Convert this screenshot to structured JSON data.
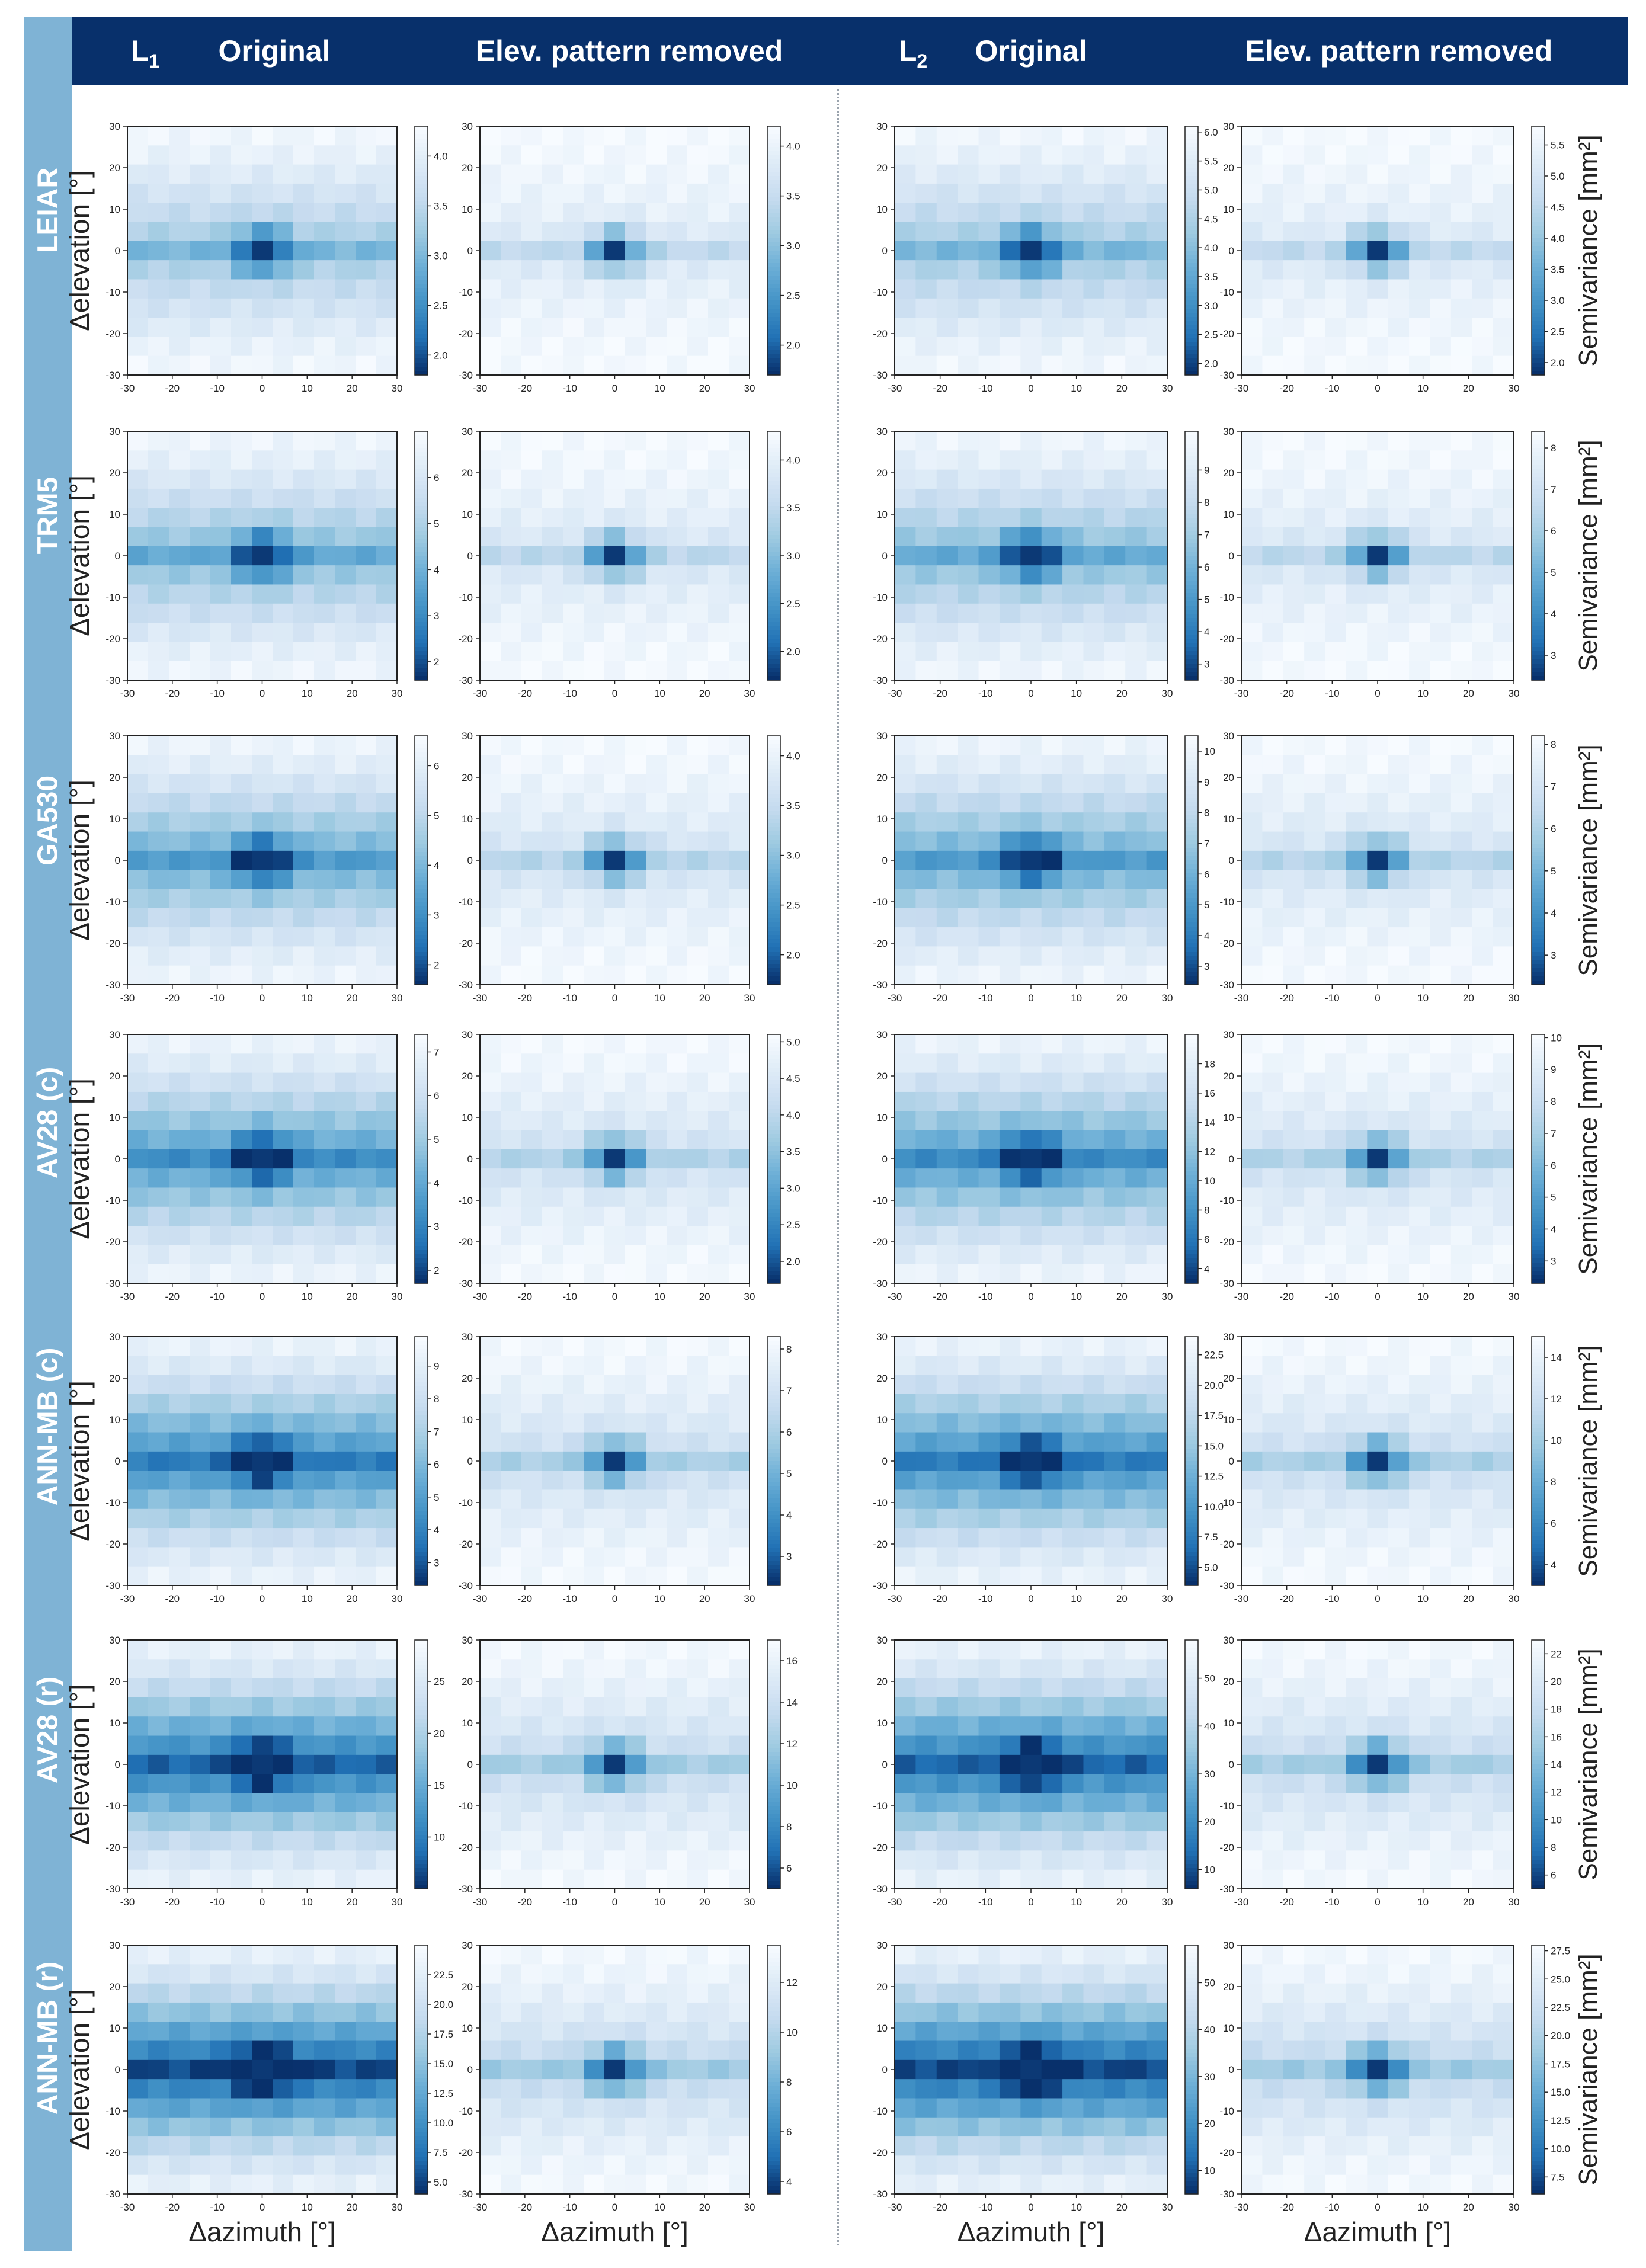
{
  "header": {
    "l1_label": "L",
    "l1_sub": "1",
    "l2_label": "L",
    "l2_sub": "2",
    "original": "Original",
    "removed": "Elev. pattern removed"
  },
  "rows": [
    {
      "label": "LEIAR"
    },
    {
      "label": "TRM5"
    },
    {
      "label": "GA530"
    },
    {
      "label": "AV28 (c)"
    },
    {
      "label": "ANN-MB (c)"
    },
    {
      "label": "AV28 (r)"
    },
    {
      "label": "ANN-MB (r)"
    }
  ],
  "axes": {
    "ylabel": "Δelevation [°]",
    "xlabel": "Δazimuth [°]",
    "cbar_label": "Semivariance [mm²]",
    "ticks": [
      "-30",
      "-20",
      "-10",
      "0",
      "10",
      "20",
      "30"
    ]
  },
  "colors": {
    "sidebar": "#7fb3d5",
    "header": "#08306b",
    "divider": "#9aa3ad"
  },
  "chart_data": [
    {
      "type": "heatmap",
      "row": "LEIAR",
      "col": "L1 Original",
      "colormap": "Blues_r",
      "x_range": [
        -30,
        30
      ],
      "y_range": [
        -30,
        30
      ],
      "cbar_range": [
        1.8,
        4.3
      ],
      "cbar_ticks": [
        "4.0",
        "3.5",
        "3.0",
        "2.5",
        "2.0"
      ]
    },
    {
      "type": "heatmap",
      "row": "LEIAR",
      "col": "L1 Elev. pattern removed",
      "colormap": "Blues_r",
      "x_range": [
        -30,
        30
      ],
      "y_range": [
        -30,
        30
      ],
      "cbar_range": [
        1.7,
        4.2
      ],
      "cbar_ticks": [
        "4.0",
        "3.5",
        "3.0",
        "2.5",
        "2.0"
      ]
    },
    {
      "type": "heatmap",
      "row": "LEIAR",
      "col": "L2 Original",
      "colormap": "Blues_r",
      "x_range": [
        -30,
        30
      ],
      "y_range": [
        -30,
        30
      ],
      "cbar_range": [
        1.8,
        6.1
      ],
      "cbar_ticks": [
        "6.0",
        "5.5",
        "5.0",
        "4.5",
        "4.0",
        "3.5",
        "3.0",
        "2.5",
        "2.0"
      ]
    },
    {
      "type": "heatmap",
      "row": "LEIAR",
      "col": "L2 Elev. pattern removed",
      "colormap": "Blues_r",
      "x_range": [
        -30,
        30
      ],
      "y_range": [
        -30,
        30
      ],
      "cbar_range": [
        1.8,
        5.8
      ],
      "cbar_ticks": [
        "5.5",
        "5.0",
        "4.5",
        "4.0",
        "3.5",
        "3.0",
        "2.5",
        "2.0"
      ]
    },
    {
      "type": "heatmap",
      "row": "TRM5",
      "col": "L1 Original",
      "colormap": "Blues_r",
      "x_range": [
        -30,
        30
      ],
      "y_range": [
        -30,
        30
      ],
      "cbar_range": [
        1.6,
        7.0
      ],
      "cbar_ticks": [
        "6",
        "5",
        "4",
        "3",
        "2"
      ]
    },
    {
      "type": "heatmap",
      "row": "TRM5",
      "col": "L1 Elev. pattern removed",
      "colormap": "Blues_r",
      "x_range": [
        -30,
        30
      ],
      "y_range": [
        -30,
        30
      ],
      "cbar_range": [
        1.7,
        4.3
      ],
      "cbar_ticks": [
        "4.0",
        "3.5",
        "3.0",
        "2.5",
        "2.0"
      ]
    },
    {
      "type": "heatmap",
      "row": "TRM5",
      "col": "L2 Original",
      "colormap": "Blues_r",
      "x_range": [
        -30,
        30
      ],
      "y_range": [
        -30,
        30
      ],
      "cbar_range": [
        2.5,
        10.2
      ],
      "cbar_ticks": [
        "9",
        "8",
        "7",
        "6",
        "5",
        "4",
        "3"
      ]
    },
    {
      "type": "heatmap",
      "row": "TRM5",
      "col": "L2 Elev. pattern removed",
      "colormap": "Blues_r",
      "x_range": [
        -30,
        30
      ],
      "y_range": [
        -30,
        30
      ],
      "cbar_range": [
        2.4,
        8.4
      ],
      "cbar_ticks": [
        "8",
        "7",
        "6",
        "5",
        "4",
        "3"
      ]
    },
    {
      "type": "heatmap",
      "row": "GA530",
      "col": "L1 Original",
      "colormap": "Blues_r",
      "x_range": [
        -30,
        30
      ],
      "y_range": [
        -30,
        30
      ],
      "cbar_range": [
        1.6,
        6.6
      ],
      "cbar_ticks": [
        "6",
        "5",
        "4",
        "3",
        "2"
      ]
    },
    {
      "type": "heatmap",
      "row": "GA530",
      "col": "L1 Elev. pattern removed",
      "colormap": "Blues_r",
      "x_range": [
        -30,
        30
      ],
      "y_range": [
        -30,
        30
      ],
      "cbar_range": [
        1.7,
        4.2
      ],
      "cbar_ticks": [
        "4.0",
        "3.5",
        "3.0",
        "2.5",
        "2.0"
      ]
    },
    {
      "type": "heatmap",
      "row": "GA530",
      "col": "L2 Original",
      "colormap": "Blues_r",
      "x_range": [
        -30,
        30
      ],
      "y_range": [
        -30,
        30
      ],
      "cbar_range": [
        2.4,
        10.5
      ],
      "cbar_ticks": [
        "10",
        "9",
        "8",
        "7",
        "6",
        "5",
        "4",
        "3"
      ]
    },
    {
      "type": "heatmap",
      "row": "GA530",
      "col": "L2 Elev. pattern removed",
      "colormap": "Blues_r",
      "x_range": [
        -30,
        30
      ],
      "y_range": [
        -30,
        30
      ],
      "cbar_range": [
        2.3,
        8.2
      ],
      "cbar_ticks": [
        "8",
        "7",
        "6",
        "5",
        "4",
        "3"
      ]
    },
    {
      "type": "heatmap",
      "row": "AV28 (c)",
      "col": "L1 Original",
      "colormap": "Blues_r",
      "x_range": [
        -30,
        30
      ],
      "y_range": [
        -30,
        30
      ],
      "cbar_range": [
        1.7,
        7.4
      ],
      "cbar_ticks": [
        "7",
        "6",
        "5",
        "4",
        "3",
        "2"
      ]
    },
    {
      "type": "heatmap",
      "row": "AV28 (c)",
      "col": "L1 Elev. pattern removed",
      "colormap": "Blues_r",
      "x_range": [
        -30,
        30
      ],
      "y_range": [
        -30,
        30
      ],
      "cbar_range": [
        1.7,
        5.1
      ],
      "cbar_ticks": [
        "5.0",
        "4.5",
        "4.0",
        "3.5",
        "3.0",
        "2.5",
        "2.0"
      ]
    },
    {
      "type": "heatmap",
      "row": "AV28 (c)",
      "col": "L2 Original",
      "colormap": "Blues_r",
      "x_range": [
        -30,
        30
      ],
      "y_range": [
        -30,
        30
      ],
      "cbar_range": [
        3,
        20
      ],
      "cbar_ticks": [
        "18",
        "16",
        "14",
        "12",
        "10",
        "8",
        "6",
        "4"
      ]
    },
    {
      "type": "heatmap",
      "row": "AV28 (c)",
      "col": "L2 Elev. pattern removed",
      "colormap": "Blues_r",
      "x_range": [
        -30,
        30
      ],
      "y_range": [
        -30,
        30
      ],
      "cbar_range": [
        2.3,
        10.1
      ],
      "cbar_ticks": [
        "10",
        "9",
        "8",
        "7",
        "6",
        "5",
        "4",
        "3"
      ]
    },
    {
      "type": "heatmap",
      "row": "ANN-MB (c)",
      "col": "L1 Original",
      "colormap": "Blues_r",
      "x_range": [
        -30,
        30
      ],
      "y_range": [
        -30,
        30
      ],
      "cbar_range": [
        2.3,
        9.9
      ],
      "cbar_ticks": [
        "9",
        "8",
        "7",
        "6",
        "5",
        "4",
        "3"
      ]
    },
    {
      "type": "heatmap",
      "row": "ANN-MB (c)",
      "col": "L1 Elev. pattern removed",
      "colormap": "Blues_r",
      "x_range": [
        -30,
        30
      ],
      "y_range": [
        -30,
        30
      ],
      "cbar_range": [
        2.3,
        8.3
      ],
      "cbar_ticks": [
        "8",
        "7",
        "6",
        "5",
        "4",
        "3"
      ]
    },
    {
      "type": "heatmap",
      "row": "ANN-MB (c)",
      "col": "L2 Original",
      "colormap": "Blues_r",
      "x_range": [
        -30,
        30
      ],
      "y_range": [
        -30,
        30
      ],
      "cbar_range": [
        3.5,
        24
      ],
      "cbar_ticks": [
        "22.5",
        "20.0",
        "17.5",
        "15.0",
        "12.5",
        "10.0",
        "7.5",
        "5.0"
      ]
    },
    {
      "type": "heatmap",
      "row": "ANN-MB (c)",
      "col": "L2 Elev. pattern removed",
      "colormap": "Blues_r",
      "x_range": [
        -30,
        30
      ],
      "y_range": [
        -30,
        30
      ],
      "cbar_range": [
        3,
        15
      ],
      "cbar_ticks": [
        "14",
        "12",
        "10",
        "8",
        "6",
        "4"
      ]
    },
    {
      "type": "heatmap",
      "row": "AV28 (r)",
      "col": "L1 Original",
      "colormap": "Blues_r",
      "x_range": [
        -30,
        30
      ],
      "y_range": [
        -30,
        30
      ],
      "cbar_range": [
        5,
        29
      ],
      "cbar_ticks": [
        "25",
        "20",
        "15",
        "10"
      ]
    },
    {
      "type": "heatmap",
      "row": "AV28 (r)",
      "col": "L1 Elev. pattern removed",
      "colormap": "Blues_r",
      "x_range": [
        -30,
        30
      ],
      "y_range": [
        -30,
        30
      ],
      "cbar_range": [
        5,
        17
      ],
      "cbar_ticks": [
        "16",
        "14",
        "12",
        "10",
        "8",
        "6"
      ]
    },
    {
      "type": "heatmap",
      "row": "AV28 (r)",
      "col": "L2 Original",
      "colormap": "Blues_r",
      "x_range": [
        -30,
        30
      ],
      "y_range": [
        -30,
        30
      ],
      "cbar_range": [
        6,
        58
      ],
      "cbar_ticks": [
        "50",
        "40",
        "30",
        "20",
        "10"
      ]
    },
    {
      "type": "heatmap",
      "row": "AV28 (r)",
      "col": "L2 Elev. pattern removed",
      "colormap": "Blues_r",
      "x_range": [
        -30,
        30
      ],
      "y_range": [
        -30,
        30
      ],
      "cbar_range": [
        5,
        23
      ],
      "cbar_ticks": [
        "22",
        "20",
        "18",
        "16",
        "14",
        "12",
        "10",
        "8",
        "6"
      ]
    },
    {
      "type": "heatmap",
      "row": "ANN-MB (r)",
      "col": "L1 Original",
      "colormap": "Blues_r",
      "x_range": [
        -30,
        30
      ],
      "y_range": [
        -30,
        30
      ],
      "cbar_range": [
        4,
        25
      ],
      "cbar_ticks": [
        "22.5",
        "20.0",
        "17.5",
        "15.0",
        "12.5",
        "10.0",
        "7.5",
        "5.0"
      ]
    },
    {
      "type": "heatmap",
      "row": "ANN-MB (r)",
      "col": "L1 Elev. pattern removed",
      "colormap": "Blues_r",
      "x_range": [
        -30,
        30
      ],
      "y_range": [
        -30,
        30
      ],
      "cbar_range": [
        3.5,
        13.5
      ],
      "cbar_ticks": [
        "12",
        "10",
        "8",
        "6",
        "4"
      ]
    },
    {
      "type": "heatmap",
      "row": "ANN-MB (r)",
      "col": "L2 Original",
      "colormap": "Blues_r",
      "x_range": [
        -30,
        30
      ],
      "y_range": [
        -30,
        30
      ],
      "cbar_range": [
        5,
        58
      ],
      "cbar_ticks": [
        "50",
        "40",
        "30",
        "20",
        "10"
      ]
    },
    {
      "type": "heatmap",
      "row": "ANN-MB (r)",
      "col": "L2 Elev. pattern removed",
      "colormap": "Blues_r",
      "x_range": [
        -30,
        30
      ],
      "y_range": [
        -30,
        30
      ],
      "cbar_range": [
        6,
        28
      ],
      "cbar_ticks": [
        "27.5",
        "25.0",
        "22.5",
        "20.0",
        "17.5",
        "15.0",
        "12.5",
        "10.0",
        "7.5"
      ]
    }
  ]
}
